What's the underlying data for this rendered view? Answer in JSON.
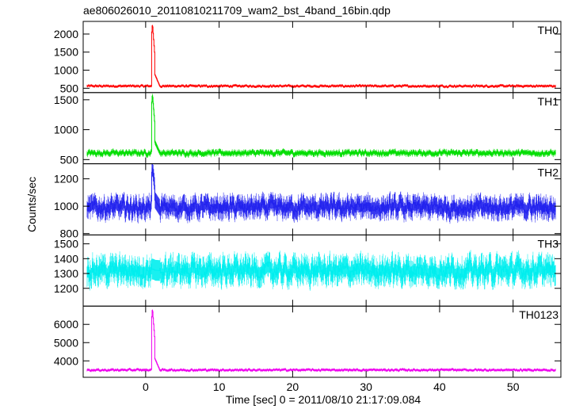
{
  "chart_data": {
    "type": "line",
    "title": "ae806026010_20110810211709_wam2_bst_4band_16bin.qdp",
    "xlabel": "Time [sec] 0 = 2011/08/10 21:17:09.084",
    "ylabel": "Counts/sec",
    "xlim": [
      -8.5,
      56.5
    ],
    "x_ticks": [
      0,
      10,
      20,
      30,
      40,
      50
    ],
    "x_tick_labels": [
      "0",
      "10",
      "20",
      "30",
      "40",
      "50"
    ],
    "x_step": 0.0625,
    "panels": [
      {
        "name": "TH0",
        "color": "#ff0000",
        "ylim": [
          380,
          2350
        ],
        "y_ticks": [
          500,
          1000,
          1500,
          2000
        ],
        "y_tick_labels": [
          "500",
          "1000",
          "1500",
          "2000"
        ],
        "baseline": 560,
        "noise": 35,
        "error": 30,
        "peak": 2300,
        "peak_time": 0.9
      },
      {
        "name": "TH1",
        "color": "#00dd00",
        "ylim": [
          430,
          1620
        ],
        "y_ticks": [
          500,
          1000,
          1500
        ],
        "y_tick_labels": [
          "500",
          "1000",
          "1500"
        ],
        "baseline": 610,
        "noise": 45,
        "error": 40,
        "peak": 1600,
        "peak_time": 0.9
      },
      {
        "name": "TH2",
        "color": "#2222ee",
        "ylim": [
          790,
          1310
        ],
        "y_ticks": [
          800,
          1000,
          1200
        ],
        "y_tick_labels": [
          "800",
          "1000",
          "1200"
        ],
        "baseline": 990,
        "noise": 70,
        "error": 60,
        "peak": 1290,
        "peak_time": 0.9
      },
      {
        "name": "TH3",
        "color": "#00eeee",
        "ylim": [
          1080,
          1560
        ],
        "y_ticks": [
          1200,
          1300,
          1400,
          1500
        ],
        "y_tick_labels": [
          "1200",
          "1300",
          "1400",
          "1500"
        ],
        "baseline": 1320,
        "noise": 80,
        "error": 70,
        "peak": 1330,
        "peak_time": 0.9
      },
      {
        "name": "TH0123",
        "color": "#ee00ee",
        "ylim": [
          3100,
          7000
        ],
        "y_ticks": [
          4000,
          5000,
          6000
        ],
        "y_tick_labels": [
          "4000",
          "5000",
          "6000"
        ],
        "baseline": 3500,
        "noise": 70,
        "error": 60,
        "peak": 6900,
        "peak_time": 0.9
      }
    ]
  }
}
